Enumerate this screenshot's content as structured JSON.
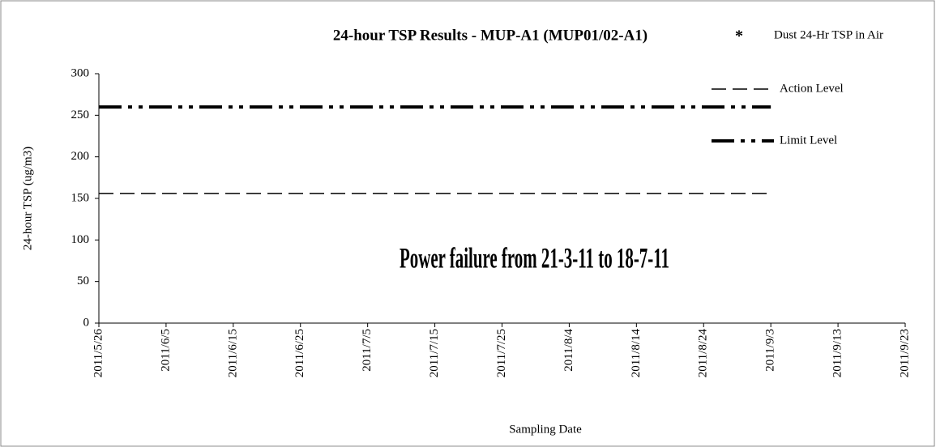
{
  "chart_data": {
    "type": "line",
    "title": "24-hour TSP Results - MUP-A1 (MUP01/02-A1)",
    "x_label": "Sampling Date",
    "y_label": "24-hour TSP (ug/m3)",
    "annotation": "Power failure from 21-3-11 to  18-7-11",
    "xlim": [
      "2011/5/26",
      "2011/9/23"
    ],
    "xticks": [
      "2011/5/26",
      "2011/6/5",
      "2011/6/15",
      "2011/6/25",
      "2011/7/5",
      "2011/7/15",
      "2011/7/25",
      "2011/8/4",
      "2011/8/14",
      "2011/8/24",
      "2011/9/3",
      "2011/9/13",
      "2011/9/23"
    ],
    "ylim": [
      0,
      300
    ],
    "yticks": [
      0,
      50,
      100,
      150,
      200,
      250,
      300
    ],
    "series": [
      {
        "name": "Dust 24-Hr TSP in Air",
        "color": "#000000",
        "x": [],
        "values": []
      },
      {
        "name": "Action Level",
        "color": "#000000",
        "x": [
          "2011/5/26",
          "2011/9/3"
        ],
        "values": [
          156,
          156
        ]
      },
      {
        "name": "Limit Level",
        "color": "#000000",
        "x": [
          "2011/5/26",
          "2011/9/3"
        ],
        "values": [
          260,
          260
        ]
      }
    ]
  }
}
